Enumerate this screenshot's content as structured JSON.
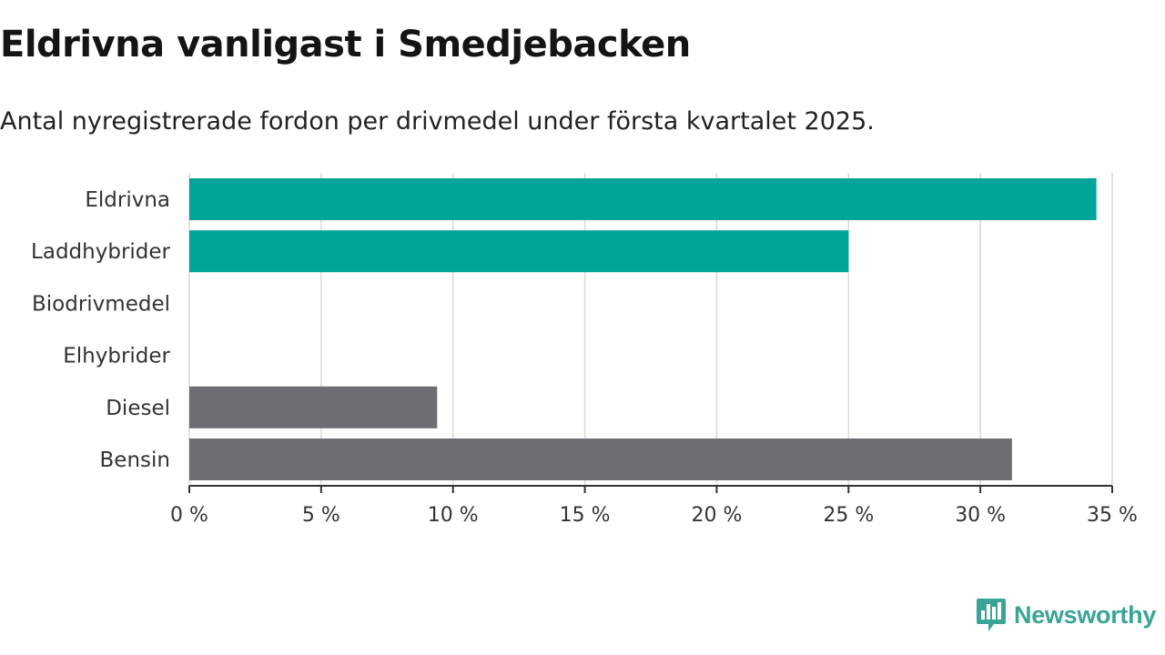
{
  "title": "Eldrivna vanligast i Smedjebacken",
  "subtitle": "Antal nyregistrerade fordon per drivmedel under första kvartalet 2025.",
  "logo": {
    "text": "Newsworthy",
    "icon": "newsworthy-bar-chart-icon"
  },
  "colors": {
    "highlight": "#00a499",
    "other": "#6e6d74",
    "grid": "#d9d9d9",
    "axis": "#333333"
  },
  "chart_data": {
    "type": "bar",
    "orientation": "horizontal",
    "categories": [
      "Eldrivna",
      "Laddhybrider",
      "Biodrivmedel",
      "Elhybrider",
      "Diesel",
      "Bensin"
    ],
    "values": [
      34.4,
      25.0,
      0,
      0,
      9.4,
      31.2
    ],
    "bar_colors": [
      "#00a499",
      "#00a499",
      "#00a499",
      "#00a499",
      "#6e6d74",
      "#6e6d74"
    ],
    "xlim": [
      0,
      35
    ],
    "xticks": [
      0,
      5,
      10,
      15,
      20,
      25,
      30,
      35
    ],
    "xtick_labels": [
      "0 %",
      "5 %",
      "10 %",
      "15 %",
      "20 %",
      "25 %",
      "30 %",
      "35 %"
    ],
    "grid": true,
    "xlabel": "",
    "ylabel": ""
  }
}
